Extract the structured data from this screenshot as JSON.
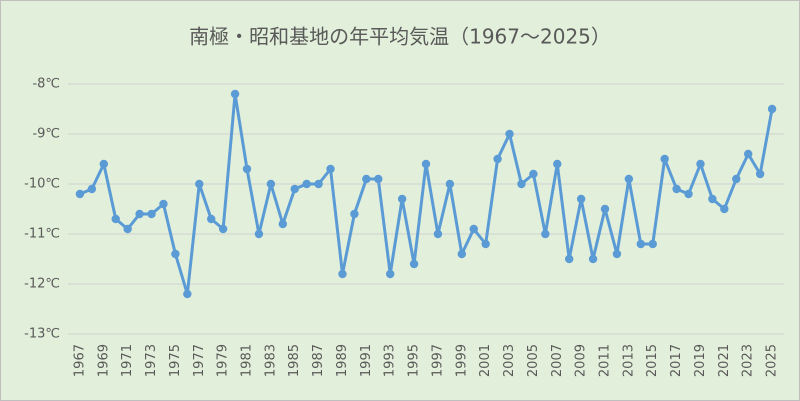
{
  "chart_data": {
    "type": "line",
    "title": "南極・昭和基地の年平均気温（1967～2025）",
    "x": [
      1967,
      1968,
      1969,
      1970,
      1971,
      1972,
      1973,
      1974,
      1975,
      1976,
      1977,
      1978,
      1979,
      1980,
      1981,
      1982,
      1983,
      1984,
      1985,
      1986,
      1987,
      1988,
      1989,
      1990,
      1991,
      1992,
      1993,
      1994,
      1995,
      1996,
      1997,
      1998,
      1999,
      2000,
      2001,
      2002,
      2003,
      2004,
      2005,
      2006,
      2007,
      2008,
      2009,
      2010,
      2011,
      2012,
      2013,
      2014,
      2015,
      2016,
      2017,
      2018,
      2019,
      2020,
      2021,
      2022,
      2023,
      2024,
      2025
    ],
    "series": [
      {
        "color": "#5b9bd5",
        "values": [
          -10.2,
          -10.1,
          -9.6,
          -10.7,
          -10.9,
          -10.6,
          -10.6,
          -10.4,
          -11.4,
          -12.2,
          -10.0,
          -10.7,
          -10.9,
          -8.2,
          -9.7,
          -11.0,
          -10.0,
          -10.8,
          -10.1,
          -10.0,
          -10.0,
          -9.7,
          -11.8,
          -10.6,
          -9.9,
          -9.9,
          -11.8,
          -10.3,
          -11.6,
          -9.6,
          -11.0,
          -10.0,
          -11.4,
          -10.9,
          -11.2,
          -9.5,
          -9.0,
          -10.0,
          -9.8,
          -11.0,
          -9.6,
          -11.5,
          -10.3,
          -11.5,
          -10.5,
          -11.4,
          -9.9,
          -11.2,
          -11.2,
          -9.5,
          -10.1,
          -10.2,
          -9.6,
          -10.3,
          -10.5,
          -9.9,
          -9.4,
          -9.8,
          -8.5
        ]
      }
    ],
    "xlim": [
      1966,
      2026
    ],
    "xticks": [
      1967,
      1969,
      1971,
      1973,
      1975,
      1977,
      1979,
      1981,
      1983,
      1985,
      1987,
      1989,
      1991,
      1993,
      1995,
      1997,
      1999,
      2001,
      2003,
      2005,
      2007,
      2009,
      2011,
      2013,
      2015,
      2017,
      2019,
      2021,
      2023,
      2025
    ],
    "ylim": [
      -13,
      -8
    ],
    "yticks": [
      {
        "value": -13,
        "label": "-13℃"
      },
      {
        "value": -12,
        "label": "-12℃"
      },
      {
        "value": -11,
        "label": "-11℃"
      },
      {
        "value": -10,
        "label": "-10℃"
      },
      {
        "value": -9,
        "label": "-9℃"
      },
      {
        "value": -8,
        "label": "-8℃"
      }
    ],
    "grid": true
  }
}
